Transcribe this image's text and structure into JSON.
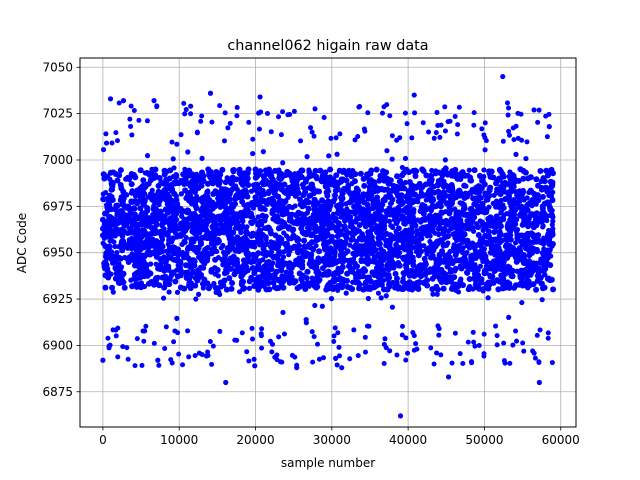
{
  "chart_data": {
    "type": "scatter",
    "title": "channel062 higain raw data",
    "xlabel": "sample number",
    "ylabel": "ADC Code",
    "xlim": [
      -3000,
      62000
    ],
    "ylim": [
      6856,
      7055
    ],
    "x_ticks": [
      0,
      10000,
      20000,
      30000,
      40000,
      50000,
      60000
    ],
    "x_tick_labels": [
      "0",
      "10000",
      "20000",
      "30000",
      "40000",
      "50000",
      "60000"
    ],
    "y_ticks": [
      6875,
      6900,
      6925,
      6950,
      6975,
      7000,
      7025,
      7050
    ],
    "y_tick_labels": [
      "6875",
      "6900",
      "6925",
      "6950",
      "6975",
      "7000",
      "7025",
      "7050"
    ],
    "grid": true,
    "marker_color": "#0000ff",
    "series_summary": {
      "x_start": 0,
      "x_end": 59000,
      "dense_band": [
        6930,
        6995
      ],
      "typical_range": [
        6905,
        7015
      ]
    },
    "notable_points": [
      {
        "x": 0,
        "y": 6892
      },
      {
        "x": 1000,
        "y": 7033
      },
      {
        "x": 2700,
        "y": 7032
      },
      {
        "x": 6700,
        "y": 7032
      },
      {
        "x": 7200,
        "y": 6892
      },
      {
        "x": 11500,
        "y": 7029
      },
      {
        "x": 14100,
        "y": 7036
      },
      {
        "x": 16100,
        "y": 6880
      },
      {
        "x": 19900,
        "y": 6889
      },
      {
        "x": 20600,
        "y": 7034
      },
      {
        "x": 25400,
        "y": 6888
      },
      {
        "x": 30500,
        "y": 6893
      },
      {
        "x": 31300,
        "y": 6888
      },
      {
        "x": 39000,
        "y": 6862
      },
      {
        "x": 40800,
        "y": 7035
      },
      {
        "x": 45300,
        "y": 6883
      },
      {
        "x": 52400,
        "y": 7045
      },
      {
        "x": 57200,
        "y": 6880
      },
      {
        "x": 56500,
        "y": 7027
      },
      {
        "x": 58500,
        "y": 7018
      }
    ]
  }
}
